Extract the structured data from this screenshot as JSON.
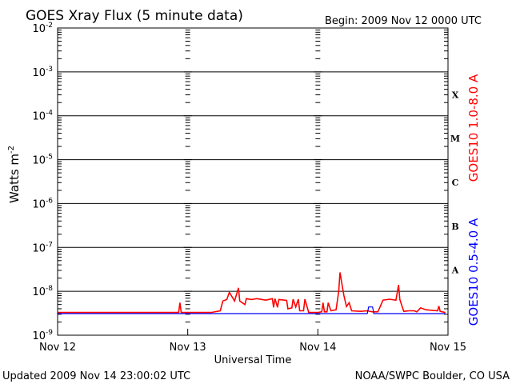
{
  "header": {
    "title": "GOES Xray Flux (5 minute data)",
    "begin": "Begin:  2009 Nov 12 0000 UTC"
  },
  "footer": {
    "updated": "Updated 2009 Nov 14 23:00:02 UTC",
    "credit": "NOAA/SWPC Boulder, CO USA"
  },
  "colors": {
    "long_channel": "#ff0000",
    "short_channel": "#0000ff",
    "axes": "#000000"
  },
  "chart_data": {
    "type": "line",
    "title": "GOES Xray Flux (5 minute data)",
    "xlabel": "Universal Time",
    "ylabel_base": "Watts m",
    "ylabel_exp": "-2",
    "y_scale": "log",
    "ylim": [
      1e-09,
      0.01
    ],
    "xlim": [
      0,
      3
    ],
    "x_tick_labels": [
      "Nov 12",
      "Nov 13",
      "Nov 14",
      "Nov 15"
    ],
    "y_tick_labels": [
      {
        "base": "10",
        "exp": "-2"
      },
      {
        "base": "10",
        "exp": "-3"
      },
      {
        "base": "10",
        "exp": "-4"
      },
      {
        "base": "10",
        "exp": "-5"
      },
      {
        "base": "10",
        "exp": "-6"
      },
      {
        "base": "10",
        "exp": "-7"
      },
      {
        "base": "10",
        "exp": "-8"
      },
      {
        "base": "10",
        "exp": "-9"
      }
    ],
    "flare_classes": [
      {
        "label": "X",
        "exp": -4
      },
      {
        "label": "M",
        "exp": -5
      },
      {
        "label": "C",
        "exp": -6
      },
      {
        "label": "B",
        "exp": -7
      },
      {
        "label": "A",
        "exp": -8
      }
    ],
    "grid": true,
    "legend_placement": "right",
    "series": [
      {
        "name": "GOES10 1.0-8.0 A",
        "color": "#ff0000",
        "points": [
          [
            0.0,
            3.3e-09
          ],
          [
            0.93,
            3.3e-09
          ],
          [
            0.94,
            5.5e-09
          ],
          [
            0.95,
            3.3e-09
          ],
          [
            1.18,
            3.3e-09
          ],
          [
            1.25,
            3.6e-09
          ],
          [
            1.27,
            6e-09
          ],
          [
            1.3,
            6.5e-09
          ],
          [
            1.32,
            9.5e-09
          ],
          [
            1.36,
            6e-09
          ],
          [
            1.39,
            1.2e-08
          ],
          [
            1.4,
            6e-09
          ],
          [
            1.44,
            5e-09
          ],
          [
            1.45,
            6.8e-09
          ],
          [
            1.49,
            6.5e-09
          ],
          [
            1.53,
            6.8e-09
          ],
          [
            1.6,
            6.3e-09
          ],
          [
            1.65,
            6.8e-09
          ],
          [
            1.66,
            4.3e-09
          ],
          [
            1.67,
            6.8e-09
          ],
          [
            1.69,
            4.3e-09
          ],
          [
            1.7,
            6.5e-09
          ],
          [
            1.76,
            6.2e-09
          ],
          [
            1.77,
            4e-09
          ],
          [
            1.8,
            4.2e-09
          ],
          [
            1.81,
            6.6e-09
          ],
          [
            1.83,
            4.4e-09
          ],
          [
            1.85,
            6.6e-09
          ],
          [
            1.86,
            3.6e-09
          ],
          [
            1.89,
            3.6e-09
          ],
          [
            1.9,
            6.6e-09
          ],
          [
            1.93,
            3.3e-09
          ],
          [
            2.0,
            3.3e-09
          ],
          [
            2.03,
            3.4e-09
          ],
          [
            2.04,
            5.5e-09
          ],
          [
            2.05,
            3.4e-09
          ],
          [
            2.07,
            3.4e-09
          ],
          [
            2.08,
            5.5e-09
          ],
          [
            2.1,
            3.6e-09
          ],
          [
            2.14,
            3.8e-09
          ],
          [
            2.16,
            1e-08
          ],
          [
            2.17,
            2.7e-08
          ],
          [
            2.19,
            1.2e-08
          ],
          [
            2.2,
            8e-09
          ],
          [
            2.22,
            4.5e-09
          ],
          [
            2.24,
            5.5e-09
          ],
          [
            2.26,
            3.6e-09
          ],
          [
            2.33,
            3.5e-09
          ],
          [
            2.38,
            3.6e-09
          ],
          [
            2.42,
            3.4e-09
          ],
          [
            2.46,
            3.4e-09
          ],
          [
            2.47,
            3.9e-09
          ],
          [
            2.5,
            6.3e-09
          ],
          [
            2.55,
            6.6e-09
          ],
          [
            2.6,
            6.3e-09
          ],
          [
            2.62,
            1.4e-08
          ],
          [
            2.63,
            6.5e-09
          ],
          [
            2.66,
            3.5e-09
          ],
          [
            2.7,
            3.6e-09
          ],
          [
            2.74,
            3.6e-09
          ],
          [
            2.76,
            3.4e-09
          ],
          [
            2.79,
            4.2e-09
          ],
          [
            2.83,
            3.8e-09
          ],
          [
            2.92,
            3.6e-09
          ],
          [
            2.93,
            4.6e-09
          ],
          [
            2.94,
            3.5e-09
          ],
          [
            2.98,
            3.3e-09
          ]
        ]
      },
      {
        "name": "GOES10 0.5-4.0 A",
        "color": "#0000ff",
        "points": [
          [
            0.0,
            3.1e-09
          ],
          [
            2.38,
            3.1e-09
          ],
          [
            2.39,
            4.4e-09
          ],
          [
            2.42,
            4.4e-09
          ],
          [
            2.43,
            3.1e-09
          ],
          [
            2.98,
            3.1e-09
          ]
        ]
      }
    ]
  }
}
